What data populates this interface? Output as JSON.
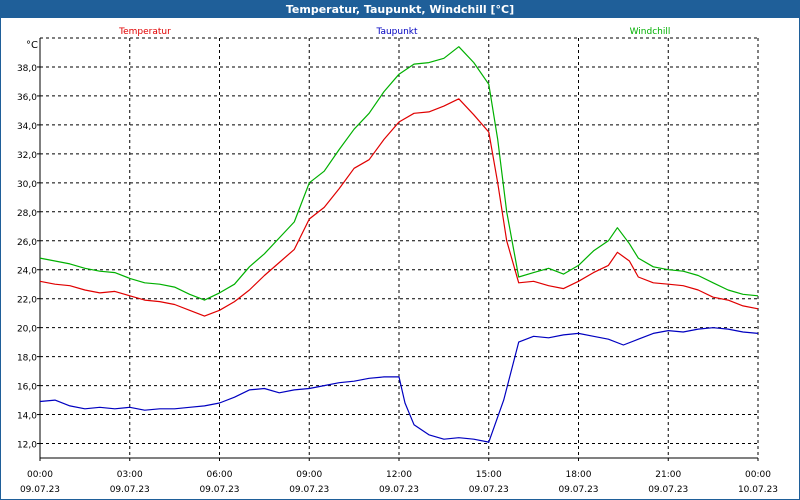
{
  "window": {
    "title": "Temperatur, Taupunkt, Windchill [°C]"
  },
  "chart_data": {
    "type": "line",
    "title": "Temperatur, Taupunkt, Windchill [°C]",
    "ylabel": "°C",
    "ylim": [
      11.0,
      40.0
    ],
    "yticks": [
      "12,0",
      "14,0",
      "16,0",
      "18,0",
      "20,0",
      "22,0",
      "24,0",
      "26,0",
      "28,0",
      "30,0",
      "32,0",
      "34,0",
      "36,0",
      "38,0"
    ],
    "ytick_values": [
      12,
      14,
      16,
      18,
      20,
      22,
      24,
      26,
      28,
      30,
      32,
      34,
      36,
      38
    ],
    "xlim": [
      0,
      24
    ],
    "xticks": [
      {
        "time": "00:00",
        "date": "09.07.23",
        "h": 0
      },
      {
        "time": "03:00",
        "date": "09.07.23",
        "h": 3
      },
      {
        "time": "06:00",
        "date": "09.07.23",
        "h": 6
      },
      {
        "time": "09:00",
        "date": "09.07.23",
        "h": 9
      },
      {
        "time": "12:00",
        "date": "09.07.23",
        "h": 12
      },
      {
        "time": "15:00",
        "date": "09.07.23",
        "h": 15
      },
      {
        "time": "18:00",
        "date": "09.07.23",
        "h": 18
      },
      {
        "time": "21:00",
        "date": "09.07.23",
        "h": 21
      },
      {
        "time": "00:00",
        "date": "10.07.23",
        "h": 24
      }
    ],
    "grid": true,
    "legend_placement": "top",
    "series": [
      {
        "name": "Temperatur",
        "color": "#e00000",
        "points": [
          [
            0,
            23.2
          ],
          [
            0.5,
            23.0
          ],
          [
            1,
            22.9
          ],
          [
            1.5,
            22.6
          ],
          [
            2,
            22.4
          ],
          [
            2.5,
            22.5
          ],
          [
            3,
            22.2
          ],
          [
            3.5,
            21.9
          ],
          [
            4,
            21.8
          ],
          [
            4.5,
            21.6
          ],
          [
            5,
            21.2
          ],
          [
            5.5,
            20.8
          ],
          [
            6,
            21.2
          ],
          [
            6.5,
            21.8
          ],
          [
            7,
            22.6
          ],
          [
            7.5,
            23.6
          ],
          [
            8,
            24.5
          ],
          [
            8.5,
            25.4
          ],
          [
            9,
            27.5
          ],
          [
            9.5,
            28.3
          ],
          [
            10,
            29.6
          ],
          [
            10.5,
            31.0
          ],
          [
            11,
            31.6
          ],
          [
            11.5,
            33.0
          ],
          [
            12,
            34.2
          ],
          [
            12.5,
            34.8
          ],
          [
            13,
            34.9
          ],
          [
            13.5,
            35.3
          ],
          [
            14,
            35.8
          ],
          [
            14.5,
            34.7
          ],
          [
            15,
            33.5
          ],
          [
            15.3,
            30.0
          ],
          [
            15.6,
            26.0
          ],
          [
            16,
            23.1
          ],
          [
            16.5,
            23.2
          ],
          [
            17,
            22.9
          ],
          [
            17.5,
            22.7
          ],
          [
            18,
            23.2
          ],
          [
            18.5,
            23.8
          ],
          [
            19,
            24.3
          ],
          [
            19.3,
            25.2
          ],
          [
            19.7,
            24.6
          ],
          [
            20,
            23.5
          ],
          [
            20.5,
            23.1
          ],
          [
            21,
            23.0
          ],
          [
            21.5,
            22.9
          ],
          [
            22,
            22.6
          ],
          [
            22.5,
            22.1
          ],
          [
            23,
            21.9
          ],
          [
            23.5,
            21.5
          ],
          [
            24,
            21.3
          ]
        ]
      },
      {
        "name": "Taupunkt",
        "color": "#0000c0",
        "points": [
          [
            0,
            14.9
          ],
          [
            0.5,
            15.0
          ],
          [
            1,
            14.6
          ],
          [
            1.5,
            14.4
          ],
          [
            2,
            14.5
          ],
          [
            2.5,
            14.4
          ],
          [
            3,
            14.5
          ],
          [
            3.5,
            14.3
          ],
          [
            4,
            14.4
          ],
          [
            4.5,
            14.4
          ],
          [
            5,
            14.5
          ],
          [
            5.5,
            14.6
          ],
          [
            6,
            14.8
          ],
          [
            6.5,
            15.2
          ],
          [
            7,
            15.7
          ],
          [
            7.5,
            15.8
          ],
          [
            8,
            15.5
          ],
          [
            8.5,
            15.7
          ],
          [
            9,
            15.8
          ],
          [
            9.5,
            16.0
          ],
          [
            10,
            16.2
          ],
          [
            10.5,
            16.3
          ],
          [
            11,
            16.5
          ],
          [
            11.5,
            16.6
          ],
          [
            12,
            16.6
          ],
          [
            12.2,
            14.8
          ],
          [
            12.5,
            13.3
          ],
          [
            13,
            12.6
          ],
          [
            13.5,
            12.3
          ],
          [
            14,
            12.4
          ],
          [
            14.5,
            12.3
          ],
          [
            15,
            12.1
          ],
          [
            15.5,
            15.0
          ],
          [
            16,
            19.0
          ],
          [
            16.5,
            19.4
          ],
          [
            17,
            19.3
          ],
          [
            17.5,
            19.5
          ],
          [
            18,
            19.6
          ],
          [
            18.5,
            19.4
          ],
          [
            19,
            19.2
          ],
          [
            19.5,
            18.8
          ],
          [
            20,
            19.2
          ],
          [
            20.5,
            19.6
          ],
          [
            21,
            19.8
          ],
          [
            21.5,
            19.7
          ],
          [
            22,
            19.9
          ],
          [
            22.5,
            20.0
          ],
          [
            23,
            19.9
          ],
          [
            23.5,
            19.7
          ],
          [
            24,
            19.6
          ]
        ]
      },
      {
        "name": "Windchill",
        "color": "#00b000",
        "points": [
          [
            0,
            24.8
          ],
          [
            0.5,
            24.6
          ],
          [
            1,
            24.4
          ],
          [
            1.5,
            24.1
          ],
          [
            2,
            23.9
          ],
          [
            2.5,
            23.8
          ],
          [
            3,
            23.4
          ],
          [
            3.5,
            23.1
          ],
          [
            4,
            23.0
          ],
          [
            4.5,
            22.8
          ],
          [
            5,
            22.3
          ],
          [
            5.5,
            21.9
          ],
          [
            6,
            22.4
          ],
          [
            6.5,
            23.0
          ],
          [
            7,
            24.2
          ],
          [
            7.5,
            25.1
          ],
          [
            8,
            26.2
          ],
          [
            8.5,
            27.3
          ],
          [
            9,
            30.0
          ],
          [
            9.5,
            30.8
          ],
          [
            10,
            32.3
          ],
          [
            10.5,
            33.7
          ],
          [
            11,
            34.8
          ],
          [
            11.5,
            36.3
          ],
          [
            12,
            37.5
          ],
          [
            12.5,
            38.2
          ],
          [
            13,
            38.3
          ],
          [
            13.5,
            38.6
          ],
          [
            14,
            39.4
          ],
          [
            14.5,
            38.3
          ],
          [
            15,
            36.8
          ],
          [
            15.3,
            33.0
          ],
          [
            15.6,
            28.0
          ],
          [
            16,
            23.5
          ],
          [
            16.5,
            23.8
          ],
          [
            17,
            24.1
          ],
          [
            17.5,
            23.7
          ],
          [
            18,
            24.3
          ],
          [
            18.5,
            25.3
          ],
          [
            19,
            26.0
          ],
          [
            19.3,
            26.9
          ],
          [
            19.7,
            25.8
          ],
          [
            20,
            24.8
          ],
          [
            20.5,
            24.2
          ],
          [
            21,
            24.0
          ],
          [
            21.5,
            23.9
          ],
          [
            22,
            23.6
          ],
          [
            22.5,
            23.1
          ],
          [
            23,
            22.6
          ],
          [
            23.5,
            22.3
          ],
          [
            24,
            22.2
          ]
        ]
      }
    ]
  }
}
